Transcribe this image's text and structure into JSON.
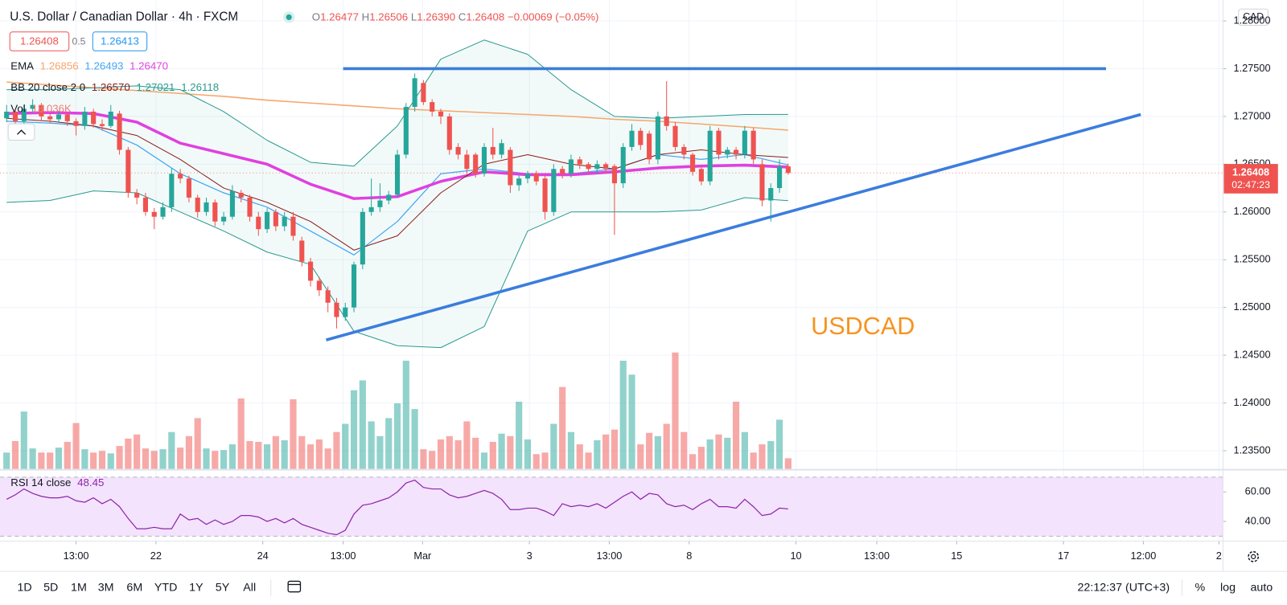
{
  "header": {
    "title": "U.S. Dollar / Canadian Dollar · 4h · FXCM",
    "ohlc": [
      {
        "label": "O",
        "value": "1.26477"
      },
      {
        "label": "H",
        "value": "1.26506"
      },
      {
        "label": "L",
        "value": "1.26390"
      },
      {
        "label": "C",
        "value": "1.26408"
      }
    ],
    "change": "−0.00069 (−0.05%)",
    "bid": "1.26408",
    "spread": "0.5",
    "ask": "1.26413"
  },
  "indicators": {
    "ema": {
      "label": "EMA",
      "values": [
        "1.26856",
        "1.26493",
        "1.26470"
      ]
    },
    "bb": {
      "label": "BB 20 close 2 0",
      "values": [
        "1.26570",
        "1.27021",
        "1.26118"
      ]
    },
    "vol": {
      "label": "Vol",
      "value": "13.036K"
    },
    "rsi": {
      "label": "RSI 14 close",
      "value": "48.45"
    }
  },
  "currency": "CAD",
  "countdown": "02:47:23",
  "annotation": "USDCAD",
  "toolbar": {
    "ranges": [
      "1D",
      "5D",
      "1M",
      "3M",
      "6M",
      "YTD",
      "1Y",
      "5Y",
      "All"
    ],
    "clock": "22:12:37 (UTC+3)",
    "options": [
      "%",
      "log",
      "auto"
    ]
  },
  "chart_data": {
    "type": "candlestick",
    "grid": true,
    "xlim": [
      -0.76,
      140.07
    ],
    "xticks": [
      {
        "value": 8,
        "label": "13:00"
      },
      {
        "value": 17.2,
        "label": "22"
      },
      {
        "value": 29.5,
        "label": "24"
      },
      {
        "value": 38.75,
        "label": "13:00"
      },
      {
        "value": 47.9,
        "label": "Mar"
      },
      {
        "value": 60.2,
        "label": "3"
      },
      {
        "value": 69.4,
        "label": "13:00"
      },
      {
        "value": 78.6,
        "label": "8"
      },
      {
        "value": 90.9,
        "label": "10"
      },
      {
        "value": 100.2,
        "label": "13:00"
      },
      {
        "value": 109.4,
        "label": "15"
      },
      {
        "value": 121.7,
        "label": "17"
      },
      {
        "value": 130.9,
        "label": "12:00"
      },
      {
        "value": 139.6,
        "label": "2"
      }
    ],
    "ylim": [
      1.2331,
      1.2815
    ],
    "yticks": [
      {
        "value": 1.28,
        "label": "1.28000"
      },
      {
        "value": 1.275,
        "label": "1.27500"
      },
      {
        "value": 1.27,
        "label": "1.27000"
      },
      {
        "value": 1.265,
        "label": "1.26500"
      },
      {
        "value": 1.26,
        "label": "1.26000"
      },
      {
        "value": 1.255,
        "label": "1.25500"
      },
      {
        "value": 1.25,
        "label": "1.25000"
      },
      {
        "value": 1.245,
        "label": "1.24500"
      },
      {
        "value": 1.24,
        "label": "1.24000"
      },
      {
        "value": 1.235,
        "label": "1.23500"
      }
    ],
    "up_color": "#26a69a",
    "down_color": "#ef5350",
    "open": [
      1.2698,
      1.2705,
      1.2695,
      1.2708,
      1.2712,
      1.27,
      1.2697,
      1.2702,
      1.2695,
      1.269,
      1.2705,
      1.2692,
      1.269,
      1.2703,
      1.2665,
      1.262,
      1.2615,
      1.26,
      1.2595,
      1.2605,
      1.264,
      1.2635,
      1.2615,
      1.26,
      1.261,
      1.259,
      1.2595,
      1.262,
      1.2615,
      1.2595,
      1.2582,
      1.26,
      1.2585,
      1.2595,
      1.257,
      1.2548,
      1.2528,
      1.2518,
      1.2505,
      1.249,
      1.25,
      1.2545,
      1.26,
      1.2605,
      1.2612,
      1.2618,
      1.266,
      1.271,
      1.2735,
      1.2715,
      1.2705,
      1.27,
      1.2668,
      1.266,
      1.266,
      1.264,
      1.2668,
      1.266,
      1.2665,
      1.2628,
      1.2635,
      1.264,
      1.2635,
      1.26,
      1.2645,
      1.264,
      1.2655,
      1.265,
      1.2645,
      1.265,
      1.2648,
      1.263,
      1.2668,
      1.2685,
      1.2682,
      1.2655,
      1.27,
      1.269,
      1.2668,
      1.266,
      1.2645,
      1.2632,
      1.2685,
      1.266,
      1.2665,
      1.266,
      1.2685,
      1.265,
      1.2612,
      1.2625,
      1.26477
    ],
    "high": [
      1.2712,
      1.2708,
      1.2712,
      1.2718,
      1.2714,
      1.2703,
      1.2706,
      1.2705,
      1.2698,
      1.271,
      1.2708,
      1.2697,
      1.2712,
      1.2706,
      1.2668,
      1.2624,
      1.262,
      1.2604,
      1.261,
      1.2646,
      1.2645,
      1.2638,
      1.2618,
      1.2615,
      1.2613,
      1.26,
      1.2628,
      1.2623,
      1.2618,
      1.26,
      1.2604,
      1.2603,
      1.26,
      1.26,
      1.2574,
      1.2552,
      1.2532,
      1.2522,
      1.251,
      1.2505,
      1.2548,
      1.2604,
      1.2635,
      1.263,
      1.2622,
      1.2665,
      1.2714,
      1.2745,
      1.2738,
      1.2718,
      1.2708,
      1.2703,
      1.2672,
      1.2665,
      1.2662,
      1.2672,
      1.2688,
      1.2676,
      1.2668,
      1.2638,
      1.2643,
      1.2643,
      1.2638,
      1.265,
      1.2648,
      1.266,
      1.2658,
      1.2652,
      1.2654,
      1.2652,
      1.265,
      1.2672,
      1.2692,
      1.2688,
      1.2685,
      1.2705,
      1.2737,
      1.2694,
      1.2671,
      1.2662,
      1.2648,
      1.269,
      1.2688,
      1.2668,
      1.2668,
      1.269,
      1.2688,
      1.2655,
      1.263,
      1.2655,
      1.26506
    ],
    "low": [
      1.2694,
      1.269,
      1.2692,
      1.2704,
      1.2696,
      1.2693,
      1.2694,
      1.269,
      1.268,
      1.2686,
      1.2688,
      1.2685,
      1.2688,
      1.266,
      1.2615,
      1.2608,
      1.2596,
      1.2582,
      1.2592,
      1.26,
      1.263,
      1.261,
      1.2594,
      1.2596,
      1.2585,
      1.2586,
      1.2592,
      1.261,
      1.259,
      1.2575,
      1.2578,
      1.258,
      1.258,
      1.257,
      1.2543,
      1.2522,
      1.2512,
      1.2495,
      1.2478,
      1.2486,
      1.2495,
      1.254,
      1.2596,
      1.26,
      1.2608,
      1.2615,
      1.2656,
      1.2705,
      1.2712,
      1.27,
      1.2692,
      1.266,
      1.2655,
      1.264,
      1.2636,
      1.2637,
      1.2655,
      1.2656,
      1.262,
      1.2622,
      1.263,
      1.2628,
      1.2592,
      1.2596,
      1.2635,
      1.2636,
      1.2645,
      1.264,
      1.264,
      1.264,
      1.2576,
      1.2625,
      1.2664,
      1.2665,
      1.265,
      1.265,
      1.2685,
      1.2664,
      1.2655,
      1.2638,
      1.2628,
      1.2628,
      1.2655,
      1.2656,
      1.2655,
      1.2656,
      1.265,
      1.2606,
      1.259,
      1.262,
      1.2639
    ],
    "close": [
      1.2705,
      1.2695,
      1.2708,
      1.2712,
      1.27,
      1.2697,
      1.2702,
      1.2695,
      1.269,
      1.2705,
      1.2692,
      1.269,
      1.2705,
      1.2665,
      1.262,
      1.2615,
      1.26,
      1.2595,
      1.2605,
      1.264,
      1.2635,
      1.2615,
      1.26,
      1.261,
      1.259,
      1.2595,
      1.2622,
      1.2615,
      1.2595,
      1.2582,
      1.26,
      1.2585,
      1.2595,
      1.2575,
      1.2548,
      1.2528,
      1.2518,
      1.2505,
      1.249,
      1.25,
      1.2545,
      1.26,
      1.2605,
      1.2612,
      1.2618,
      1.266,
      1.271,
      1.274,
      1.2715,
      1.2705,
      1.27,
      1.2665,
      1.266,
      1.2645,
      1.264,
      1.2668,
      1.266,
      1.2672,
      1.2628,
      1.2635,
      1.264,
      1.2632,
      1.26,
      1.2645,
      1.264,
      1.2655,
      1.265,
      1.2645,
      1.265,
      1.2645,
      1.263,
      1.2668,
      1.2685,
      1.267,
      1.2655,
      1.27,
      1.269,
      1.2668,
      1.266,
      1.2642,
      1.2632,
      1.2685,
      1.266,
      1.2665,
      1.266,
      1.2685,
      1.2655,
      1.2612,
      1.2625,
      1.26477,
      1.26408
    ],
    "volume": [
      20,
      34,
      70,
      25,
      20,
      20,
      26,
      33,
      56,
      24,
      20,
      22,
      19,
      28,
      37,
      42,
      25,
      22,
      24,
      45,
      26,
      40,
      62,
      25,
      22,
      23,
      30,
      86,
      34,
      33,
      30,
      40,
      35,
      85,
      40,
      30,
      36,
      25,
      45,
      55,
      96,
      108,
      58,
      40,
      62,
      80,
      132,
      73,
      24,
      22,
      36,
      40,
      35,
      58,
      38,
      20,
      33,
      43,
      40,
      82,
      36,
      18,
      20,
      55,
      100,
      45,
      30,
      20,
      35,
      42,
      48,
      132,
      115,
      30,
      44,
      40,
      55,
      142,
      45,
      18,
      27,
      36,
      42,
      38,
      82,
      45,
      20,
      30,
      34,
      60,
      13.036
    ],
    "volume_lim": [
      0,
      564
    ],
    "overlay_x": [
      0,
      5,
      10,
      15,
      20,
      25,
      30,
      35,
      40,
      45,
      50,
      55,
      60,
      65,
      70,
      75,
      80,
      85,
      90
    ],
    "overlays": [
      {
        "color": "#f7a56a",
        "width": 1.5,
        "values": [
          1.2736,
          1.2733,
          1.273,
          1.2727,
          1.2724,
          1.2721,
          1.2717,
          1.2714,
          1.2711,
          1.2708,
          1.2706,
          1.2704,
          1.2702,
          1.27,
          1.2697,
          1.2695,
          1.2692,
          1.2689,
          1.26856
        ]
      },
      {
        "color": "#42a5f5",
        "width": 1.2,
        "values": [
          1.2695,
          1.2693,
          1.269,
          1.267,
          1.264,
          1.262,
          1.2605,
          1.258,
          1.2555,
          1.259,
          1.264,
          1.2645,
          1.264,
          1.264,
          1.2645,
          1.266,
          1.2655,
          1.266,
          1.26493
        ]
      },
      {
        "color": "#e040e0",
        "width": 3.5,
        "values": [
          1.2703,
          1.2704,
          1.2703,
          1.2694,
          1.2672,
          1.2661,
          1.265,
          1.2629,
          1.2614,
          1.2616,
          1.2632,
          1.2642,
          1.2639,
          1.2639,
          1.2642,
          1.2646,
          1.2648,
          1.2649,
          1.2647
        ]
      },
      {
        "color": "#8b1c1c",
        "width": 1,
        "values": [
          1.2698,
          1.2695,
          1.269,
          1.268,
          1.2655,
          1.2625,
          1.261,
          1.259,
          1.256,
          1.2575,
          1.262,
          1.265,
          1.266,
          1.265,
          1.2645,
          1.266,
          1.2665,
          1.266,
          1.2657
        ]
      },
      {
        "color": "#2a9a8f",
        "width": 1,
        "values": [
          1.2728,
          1.2728,
          1.273,
          1.2732,
          1.2728,
          1.2705,
          1.2675,
          1.2652,
          1.2648,
          1.269,
          1.276,
          1.278,
          1.2765,
          1.2728,
          1.27,
          1.2698,
          1.27,
          1.2702,
          1.27021
        ]
      },
      {
        "color": "#2a9a8f",
        "width": 1,
        "values": [
          1.261,
          1.2612,
          1.2622,
          1.262,
          1.26,
          1.258,
          1.2558,
          1.2545,
          1.2475,
          1.246,
          1.2458,
          1.248,
          1.258,
          1.26,
          1.26,
          1.26,
          1.2602,
          1.2615,
          1.26118
        ]
      }
    ],
    "drawings": [
      {
        "x": [
          38.75,
          126.6
        ],
        "values": [
          1.275,
          1.275
        ]
      },
      {
        "x": [
          36.8,
          130.6
        ],
        "values": [
          1.2466,
          1.2702
        ]
      }
    ],
    "drawing_color": "#3b7ddd",
    "rsi": {
      "color": "#8e24aa",
      "ylim": [
        26.7,
        73.9
      ],
      "band": [
        30,
        70
      ],
      "yticks": [
        {
          "value": 60,
          "label": "60.00"
        },
        {
          "value": 40,
          "label": "40.00"
        }
      ],
      "values": [
        55,
        58,
        62,
        59,
        57,
        56,
        56,
        57,
        54,
        53,
        56,
        52,
        55,
        50,
        42,
        35,
        35,
        36,
        35,
        35,
        45,
        41,
        42,
        38,
        41,
        38,
        40,
        44,
        44,
        43,
        40,
        42,
        39,
        42,
        38,
        36,
        34,
        32,
        31,
        34,
        45,
        51,
        52,
        54,
        56,
        60,
        66,
        68,
        63,
        62,
        62,
        58,
        56,
        57,
        59,
        61,
        59,
        55,
        48,
        48,
        49,
        49,
        47,
        44,
        52,
        50,
        51,
        50,
        52,
        49,
        53,
        57,
        60,
        55,
        59,
        58,
        52,
        50,
        51,
        48,
        52,
        55,
        50,
        50,
        49,
        55,
        50,
        44,
        45,
        49,
        48.45
      ]
    }
  }
}
